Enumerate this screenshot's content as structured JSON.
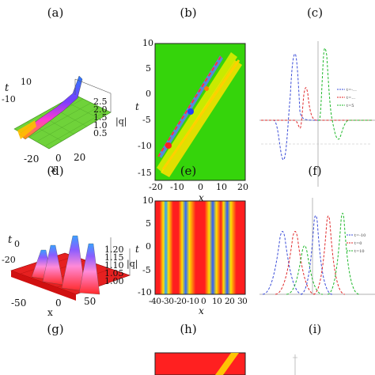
{
  "labels": {
    "a": "(a)",
    "b": "(b)",
    "c": "(c)",
    "d": "(d)",
    "e": "(e)",
    "f": "(f)",
    "g": "(g)",
    "h": "(h)",
    "i": "(i)"
  },
  "panel_d": {
    "t_label": "t",
    "t_ticks": [
      "10",
      "-10"
    ],
    "x_label": "x",
    "x_ticks": [
      "-20",
      "0",
      "20"
    ],
    "z_label": "|q|",
    "z_ticks": [
      "2.5",
      "2.0",
      "1.5",
      "1.0",
      "0.5"
    ]
  },
  "panel_e": {
    "y_label": "t",
    "x_label": "x",
    "y_ticks": [
      "10",
      "5",
      "0",
      "-5",
      "-10",
      "-15"
    ],
    "x_ticks": [
      "-20",
      "-10",
      "0",
      "10",
      "20"
    ]
  },
  "panel_f": {
    "legend": [
      "t=-…",
      "t=…",
      "t=5"
    ]
  },
  "panel_g": {
    "t_label": "t",
    "t_ticks": [
      "0",
      "-20"
    ],
    "x_label": "x",
    "x_ticks": [
      "-50",
      "0",
      "50"
    ],
    "z_label": "|q|",
    "z_ticks": [
      "1.20",
      "1.15",
      "1.10",
      "1.05",
      "1.00"
    ]
  },
  "panel_h": {
    "y_label": "t",
    "x_label": "x",
    "y_ticks": [
      "10",
      "5",
      "0",
      "-5",
      "-10"
    ],
    "x_ticks": [
      "-40",
      "-30",
      "-20",
      "-10",
      "0",
      "10",
      "20",
      "30"
    ]
  },
  "panel_i": {
    "legend": [
      "t=-10",
      "t=0",
      "t=10"
    ]
  }
}
